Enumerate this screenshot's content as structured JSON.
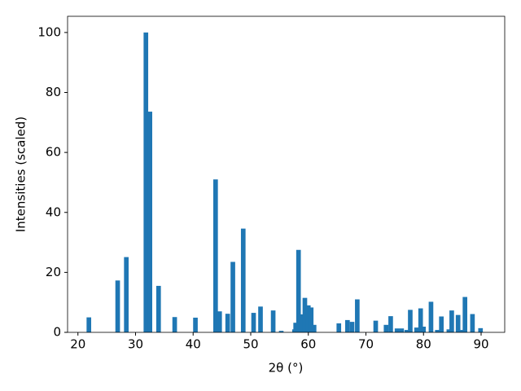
{
  "chart_data": {
    "type": "bar",
    "xlabel": "2θ (°)",
    "ylabel": "Intensities (scaled)",
    "color": "#1f77b4",
    "bar_width": 0.8,
    "x": [
      21.9,
      26.9,
      28.4,
      31.8,
      32.5,
      34.0,
      36.8,
      40.4,
      43.9,
      44.6,
      46.0,
      46.9,
      48.7,
      50.5,
      51.7,
      53.9,
      55.3,
      57.6,
      57.8,
      58.3,
      58.9,
      59.4,
      60.0,
      60.5,
      61.0,
      65.3,
      66.8,
      67.6,
      68.5,
      71.7,
      73.5,
      74.3,
      75.4,
      76.2,
      77.1,
      77.7,
      78.8,
      79.5,
      80.0,
      81.3,
      82.4,
      83.1,
      84.4,
      84.9,
      86.0,
      86.8,
      87.2,
      88.5,
      89.9
    ],
    "values": [
      5,
      17.3,
      25.1,
      100,
      73.6,
      15.5,
      5.1,
      4.9,
      51,
      7,
      6.2,
      23.5,
      34.6,
      6.5,
      8.6,
      7.3,
      0.5,
      1,
      3.2,
      27.5,
      6,
      11.5,
      9,
      8.3,
      2.5,
      3,
      4.1,
      3.5,
      11,
      3.9,
      2.5,
      5.4,
      1.3,
      1.3,
      0.8,
      7.5,
      1.6,
      8,
      1.9,
      10.2,
      0.8,
      5.3,
      1,
      7.3,
      5.8,
      0.8,
      11.8,
      6.1,
      1.4
    ],
    "xlim": [
      18.2,
      94.1
    ],
    "xticks": [
      20,
      30,
      40,
      50,
      60,
      70,
      80,
      90
    ],
    "ylim": [
      0,
      105.4
    ],
    "yticks": [
      0,
      20,
      40,
      60,
      80,
      100
    ]
  }
}
